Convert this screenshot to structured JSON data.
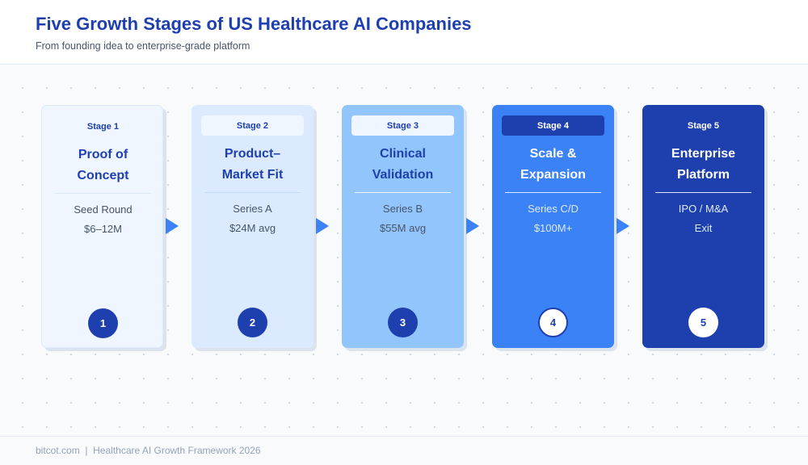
{
  "header": {
    "title": "Five Growth Stages of US Healthcare AI Companies",
    "subtitle": "From founding idea to enterprise-grade platform"
  },
  "stages": [
    {
      "stage_label": "Stage 1",
      "title_line1": "Proof of",
      "title_line2": "Concept",
      "round_line1": "Seed Round",
      "round_line2": "$6–12M",
      "number": "1"
    },
    {
      "stage_label": "Stage 2",
      "title_line1": "Product–",
      "title_line2": "Market Fit",
      "round_line1": "Series A",
      "round_line2": "$24M avg",
      "number": "2"
    },
    {
      "stage_label": "Stage 3",
      "title_line1": "Clinical",
      "title_line2": "Validation",
      "round_line1": "Series B",
      "round_line2": "$55M avg",
      "number": "3"
    },
    {
      "stage_label": "Stage 4",
      "title_line1": "Scale &",
      "title_line2": "Expansion",
      "round_line1": "Series C/D",
      "round_line2": "$100M+",
      "number": "4"
    },
    {
      "stage_label": "Stage 5",
      "title_line1": "Enterprise",
      "title_line2": "Platform",
      "round_line1": "IPO / M&A",
      "round_line2": "Exit",
      "number": "5"
    }
  ],
  "colors": {
    "stage_1_fill": "#eff6ff",
    "stage_2_fill": "#dbeafe",
    "stage_3_fill": "#93c5fd",
    "stage_4_fill": "#3b82f6",
    "stage_5_fill": "#1e40af",
    "arrow": "#3b82f6",
    "title": "#1e40af"
  },
  "footer": {
    "text": "bitcot.com  |  Healthcare AI Growth Framework 2026"
  }
}
